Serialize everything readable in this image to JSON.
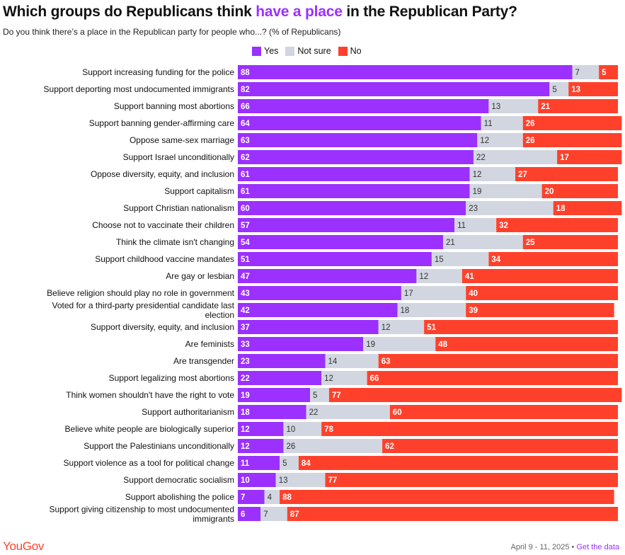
{
  "header": {
    "title_prefix": "Which groups do Republicans think ",
    "title_highlight": "have a place",
    "title_suffix": " in the Republican Party?",
    "subtitle": "Do you think there’s a place in the Republican party for people who...? (% of Republicans)"
  },
  "legend": {
    "yes": "Yes",
    "not_sure": "Not sure",
    "no": "No"
  },
  "colors": {
    "yes": "#9b30ff",
    "not_sure": "#d2d6e0",
    "no": "#ff412c",
    "accent": "#9b30ff"
  },
  "footer": {
    "logo": "YouGov",
    "date": "April 9 - 11, 2025",
    "separator": " • ",
    "link": "Get the data"
  },
  "chart_data": {
    "type": "bar",
    "orientation": "horizontal",
    "stacked": true,
    "legend_position": "top",
    "categories": [
      "Support increasing funding for the police",
      "Support deporting most undocumented immigrants",
      "Support banning most abortions",
      "Support banning gender-affirming care",
      "Oppose same-sex marriage",
      "Support Israel unconditionally",
      "Oppose diversity, equity, and inclusion",
      "Support capitalism",
      "Support Christian nationalism",
      "Choose not to vaccinate their children",
      "Think the climate isn't changing",
      "Support childhood vaccine mandates",
      "Are gay or lesbian",
      "Believe religion should play no role in government",
      "Voted for a third-party presidential candidate last election",
      "Support diversity, equity, and inclusion",
      "Are feminists",
      "Are transgender",
      "Support legalizing most abortions",
      "Think women shouldn't have the right to vote",
      "Support authoritarianism",
      "Believe white people are biologically superior",
      "Support the Palestinians unconditionally",
      "Support violence as a tool for political change",
      "Support democratic socialism",
      "Support abolishing the police",
      "Support giving citizenship to most undocumented immigrants"
    ],
    "series": [
      {
        "name": "Yes",
        "values": [
          88,
          82,
          66,
          64,
          63,
          62,
          61,
          61,
          60,
          57,
          54,
          51,
          47,
          43,
          42,
          37,
          33,
          23,
          22,
          19,
          18,
          12,
          12,
          11,
          10,
          7,
          6
        ]
      },
      {
        "name": "Not sure",
        "values": [
          7,
          5,
          13,
          11,
          12,
          22,
          12,
          19,
          23,
          11,
          21,
          15,
          12,
          17,
          18,
          12,
          19,
          14,
          12,
          5,
          22,
          10,
          26,
          5,
          13,
          4,
          7
        ]
      },
      {
        "name": "No",
        "values": [
          5,
          13,
          21,
          26,
          26,
          17,
          27,
          20,
          18,
          32,
          25,
          34,
          41,
          40,
          39,
          51,
          48,
          63,
          66,
          77,
          60,
          78,
          62,
          84,
          77,
          88,
          87
        ]
      }
    ]
  }
}
